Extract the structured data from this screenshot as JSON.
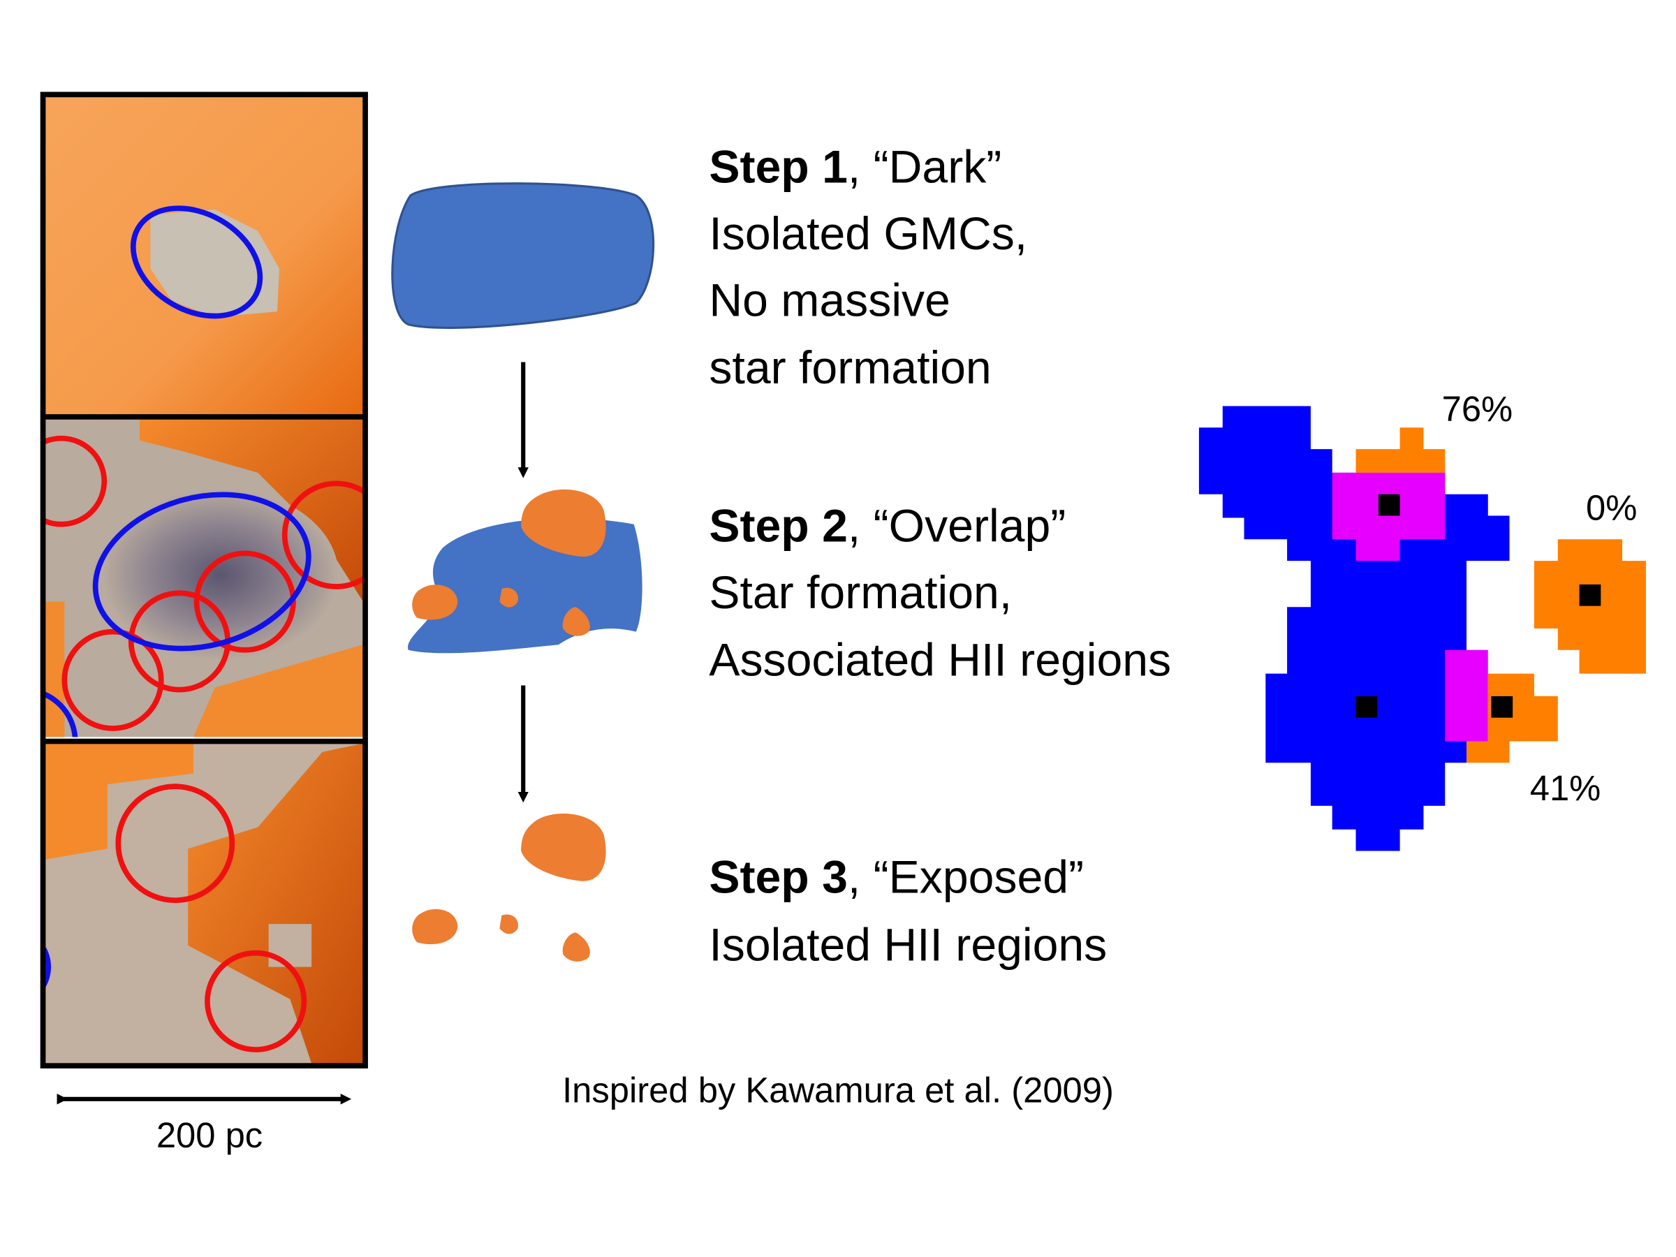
{
  "steps": [
    {
      "label": "Step 1",
      "title_rest": ", “Dark”",
      "lines": [
        "Isolated GMCs,",
        "No massive",
        "star formation"
      ]
    },
    {
      "label": "Step 2",
      "title_rest": ", “Overlap”",
      "lines": [
        "Star formation,",
        "Associated HII regions"
      ]
    },
    {
      "label": "Step 3",
      "title_rest": ", “Exposed”",
      "lines": [
        "Isolated HII regions"
      ]
    }
  ],
  "overlap_labels": [
    "76%",
    "0%",
    "41%"
  ],
  "scale_bar": "200 pc",
  "credit": "Inspired by Kawamura et al. (2009)"
}
